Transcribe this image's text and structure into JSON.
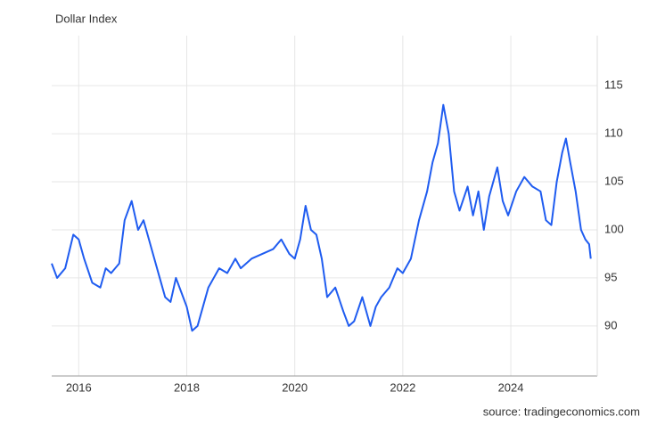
{
  "chart_data": {
    "type": "line",
    "title": "Dollar Index",
    "source": "source: tradingeconomics.com",
    "x": [
      2015.5,
      2015.6,
      2015.75,
      2015.9,
      2016.0,
      2016.1,
      2016.25,
      2016.4,
      2016.5,
      2016.6,
      2016.75,
      2016.85,
      2016.98,
      2017.1,
      2017.2,
      2017.3,
      2017.4,
      2017.5,
      2017.6,
      2017.7,
      2017.8,
      2017.9,
      2018.0,
      2018.1,
      2018.2,
      2018.3,
      2018.4,
      2018.5,
      2018.6,
      2018.75,
      2018.9,
      2019.0,
      2019.2,
      2019.4,
      2019.6,
      2019.75,
      2019.9,
      2020.0,
      2020.1,
      2020.2,
      2020.3,
      2020.4,
      2020.5,
      2020.6,
      2020.75,
      2020.9,
      2021.0,
      2021.1,
      2021.25,
      2021.4,
      2021.5,
      2021.6,
      2021.75,
      2021.9,
      2022.0,
      2022.15,
      2022.3,
      2022.45,
      2022.55,
      2022.65,
      2022.75,
      2022.85,
      2022.95,
      2023.05,
      2023.2,
      2023.3,
      2023.4,
      2023.5,
      2023.6,
      2023.75,
      2023.85,
      2023.95,
      2024.1,
      2024.25,
      2024.4,
      2024.55,
      2024.65,
      2024.75,
      2024.85,
      2024.95,
      2025.02,
      2025.1,
      2025.2,
      2025.3,
      2025.38,
      2025.45,
      2025.48
    ],
    "series": [
      {
        "name": "Dollar Index",
        "color": "#1f5cf0",
        "values": [
          96.5,
          95,
          96,
          99.5,
          99,
          97,
          94.5,
          94,
          96,
          95.5,
          96.5,
          101,
          103,
          100,
          101,
          99,
          97,
          95,
          93,
          92.5,
          95,
          93.5,
          92,
          89.5,
          90,
          92,
          94,
          95,
          96,
          95.5,
          97,
          96,
          97,
          97.5,
          98,
          99,
          97.5,
          97,
          99,
          102.5,
          100,
          99.5,
          97,
          93,
          94,
          91.5,
          90,
          90.5,
          93,
          90,
          92,
          93,
          94,
          96,
          95.5,
          97,
          101,
          104,
          107,
          109,
          113,
          110,
          104,
          102,
          104.5,
          101.5,
          104,
          100,
          103.5,
          106.5,
          103,
          101.5,
          104,
          105.5,
          104.5,
          104,
          101,
          100.5,
          105,
          108,
          109.5,
          107,
          104,
          100,
          99,
          98.5,
          97
        ]
      }
    ],
    "xlim": [
      2015.5,
      2025.6
    ],
    "xticks": [
      2016,
      2018,
      2020,
      2022,
      2024
    ],
    "ylim": [
      84.8,
      120.2
    ],
    "yticks": [
      90,
      95,
      100,
      105,
      110,
      115
    ],
    "grid": true
  }
}
